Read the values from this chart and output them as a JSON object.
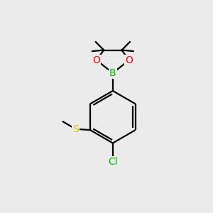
{
  "background_color": "#ebebeb",
  "bond_color": "#000000",
  "atom_colors": {
    "B": "#00bb00",
    "O": "#ff0000",
    "S": "#cccc00",
    "Cl": "#00bb00",
    "C": "#000000"
  },
  "figsize": [
    3.0,
    3.0
  ],
  "dpi": 100
}
